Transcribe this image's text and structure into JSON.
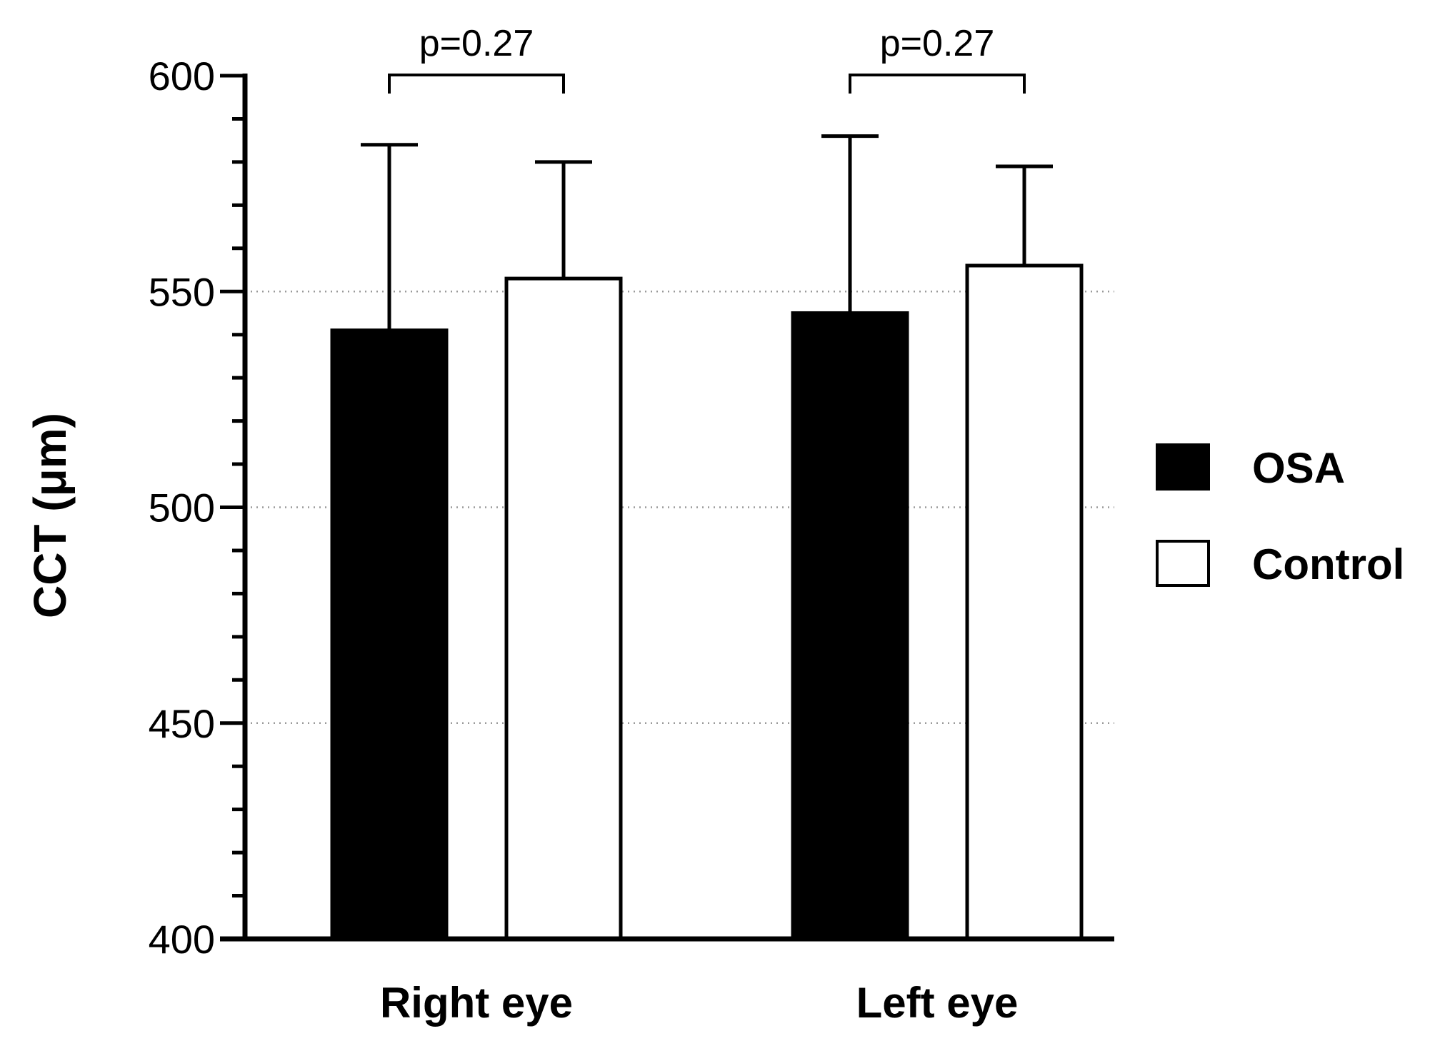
{
  "chart_data": {
    "type": "bar",
    "title": "",
    "xlabel": "",
    "ylabel": "CCT (μm)",
    "ylim": [
      400,
      600
    ],
    "yticks": [
      400,
      450,
      500,
      550,
      600
    ],
    "grid": "horizontal dotted",
    "legend_position": "right",
    "categories": [
      "Right eye",
      "Left eye"
    ],
    "series": [
      {
        "name": "OSA",
        "color": "#000000",
        "fill": "solid",
        "values": [
          541,
          545
        ],
        "error_upper": [
          584,
          586
        ]
      },
      {
        "name": "Control",
        "color": "#ffffff",
        "fill": "hollow",
        "values": [
          553,
          556
        ],
        "error_upper": [
          580,
          579
        ]
      }
    ],
    "annotations": [
      {
        "category": "Right eye",
        "text": "p=0.27"
      },
      {
        "category": "Left eye",
        "text": "p=0.27"
      }
    ]
  }
}
